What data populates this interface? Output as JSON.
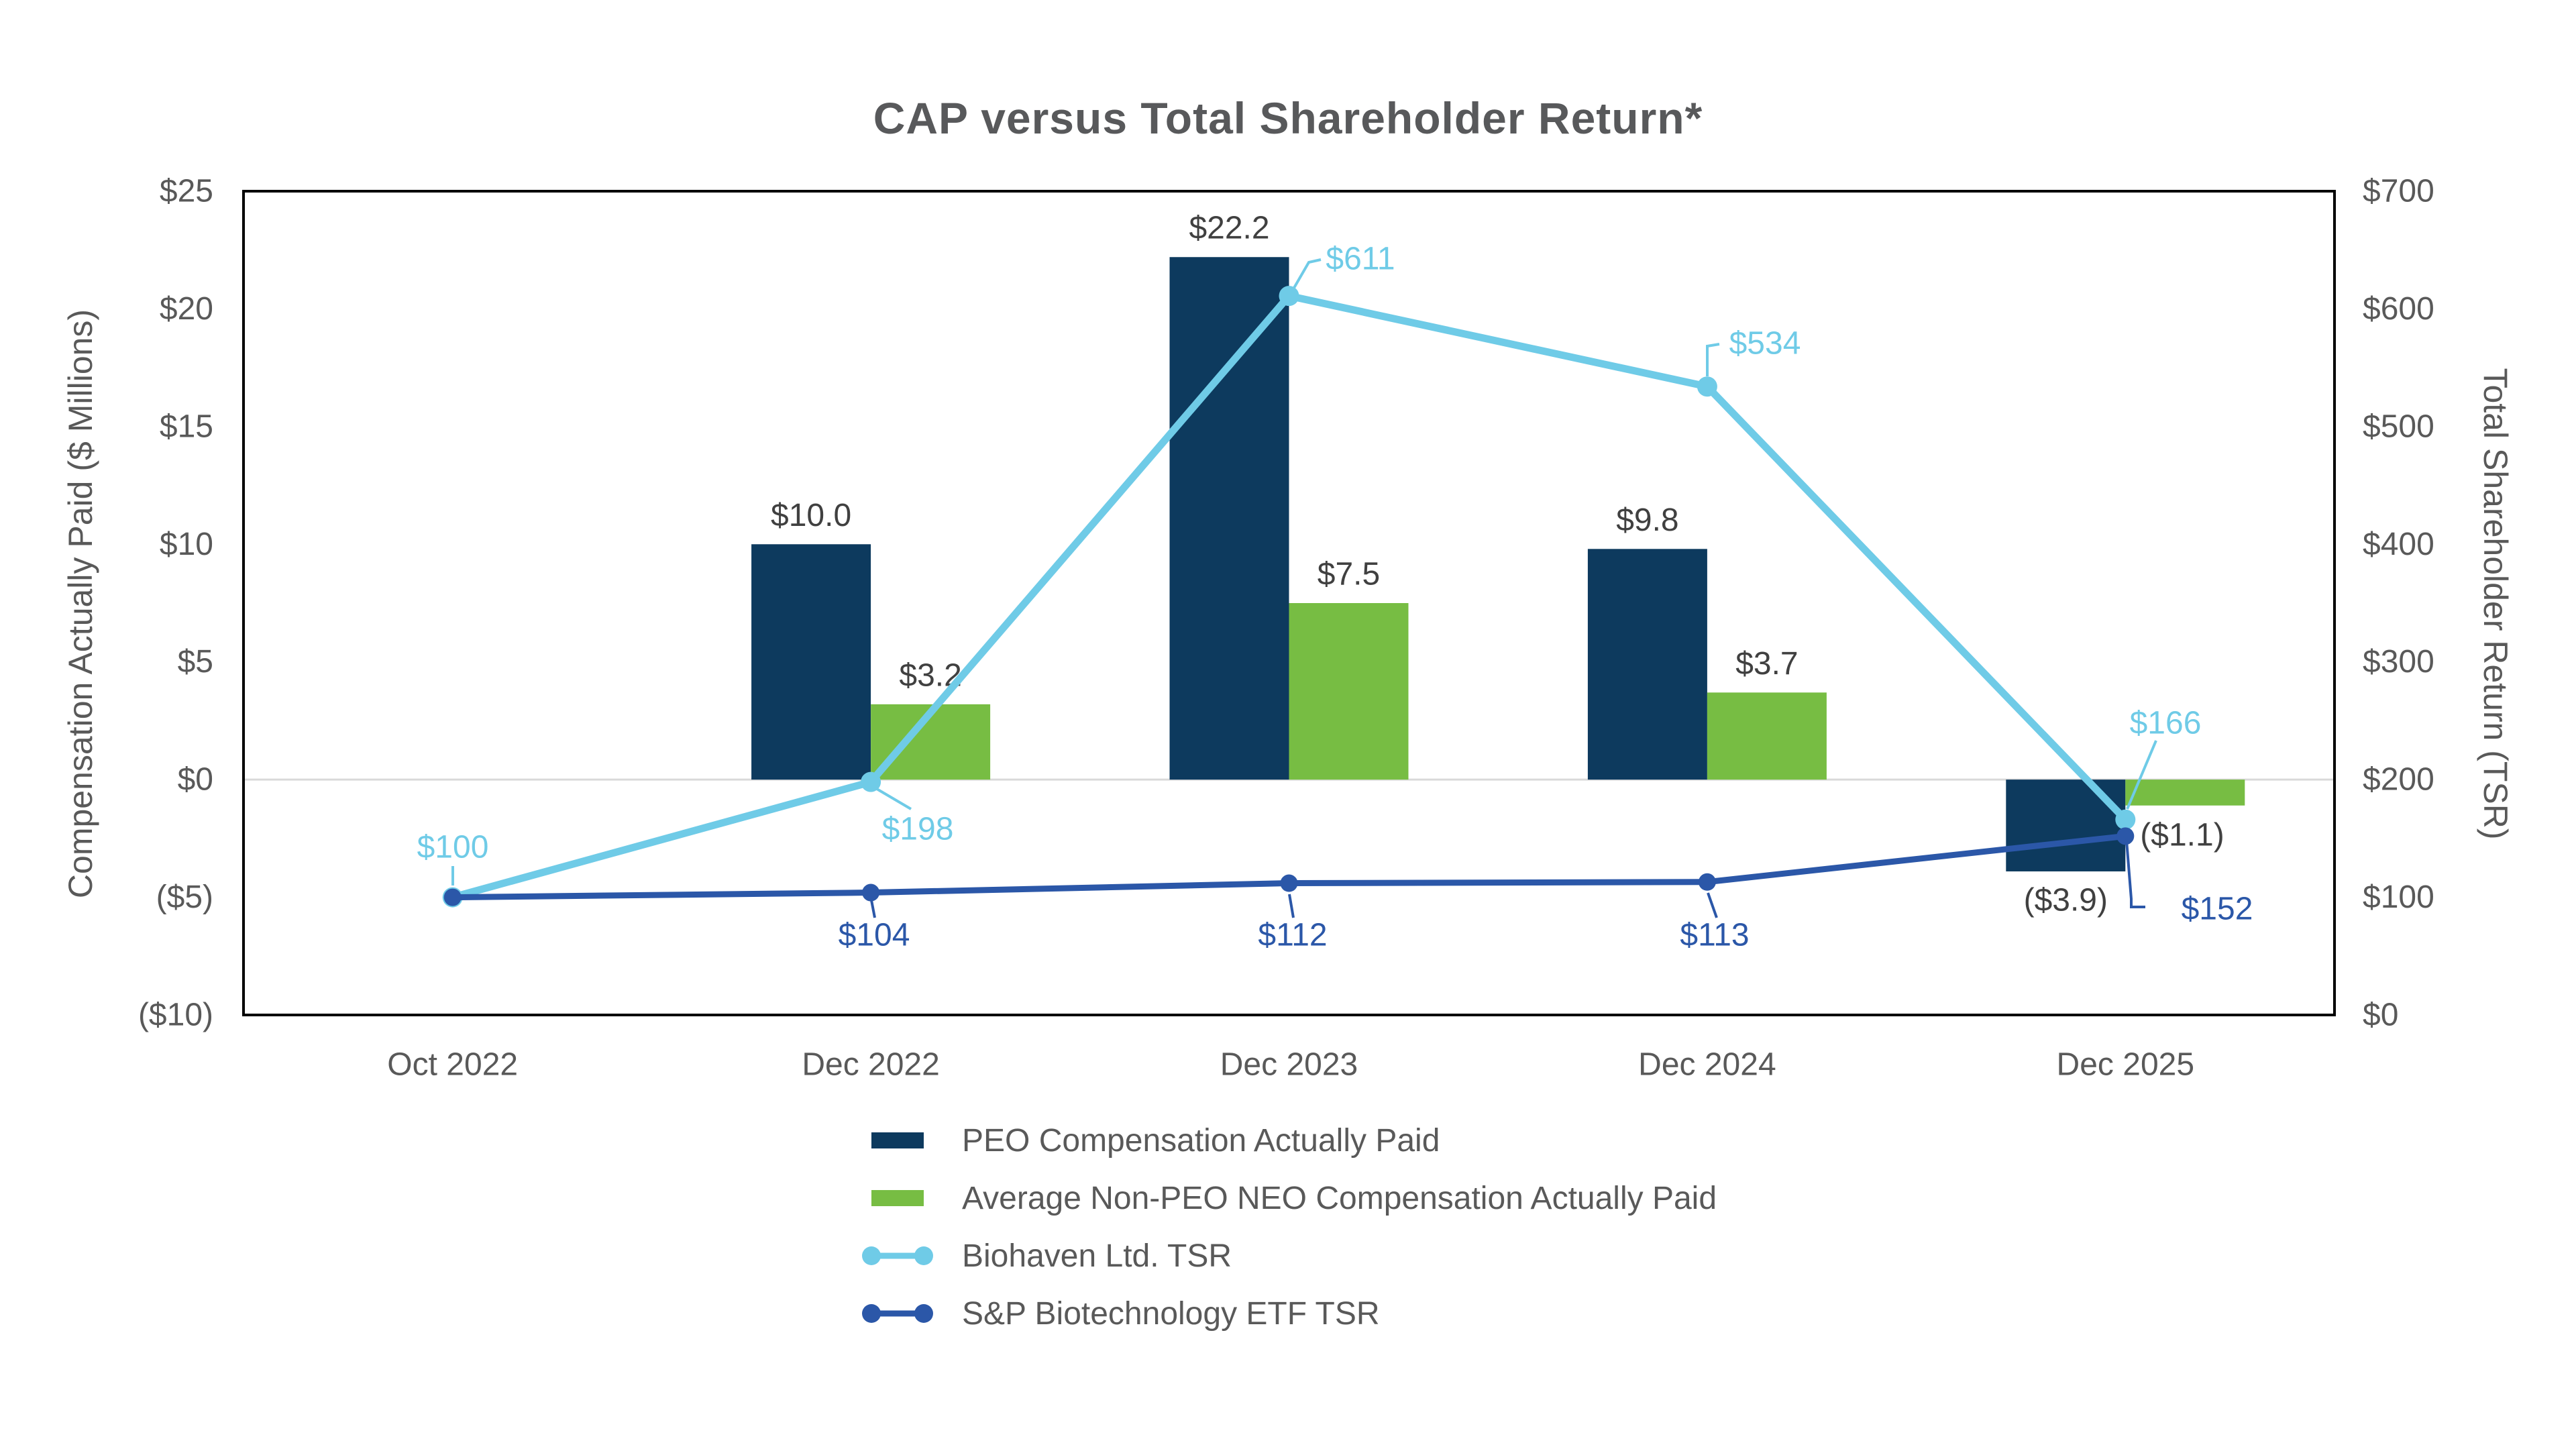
{
  "chart_data": {
    "type": "combo-bar-line",
    "title": "CAP versus Total Shareholder Return*",
    "categories": [
      "Oct 2022",
      "Dec 2022",
      "Dec 2023",
      "Dec 2024",
      "Dec 2025"
    ],
    "left_axis": {
      "label": "Compensation Actually Paid ($ Millions)",
      "ticks": [
        "$25",
        "$20",
        "$15",
        "$10",
        "$5",
        "$0",
        "($5)",
        "($10)"
      ],
      "max": 25,
      "min": -10
    },
    "right_axis": {
      "label": "Total Shareholder Return (TSR)",
      "ticks": [
        "$700",
        "$600",
        "$500",
        "$400",
        "$300",
        "$200",
        "$100",
        "$0"
      ],
      "max": 700,
      "min": 0
    },
    "grid": {
      "zero_gridline": true,
      "zero_gridline_color": "#d9d9d9",
      "plot_border_color": "#000000"
    },
    "bar_series": [
      {
        "name": "PEO Compensation Actually Paid",
        "color": "#0d3a5e",
        "axis": "left",
        "values": [
          null,
          10.0,
          22.2,
          9.8,
          -3.9
        ],
        "labels": [
          "",
          "$10.0",
          "$22.2",
          "$9.8",
          "($3.9)"
        ]
      },
      {
        "name": "Average Non-PEO NEO Compensation Actually Paid",
        "color": "#77bd43",
        "axis": "left",
        "values": [
          null,
          3.2,
          7.5,
          3.7,
          -1.1
        ],
        "labels": [
          "",
          "$3.2",
          "$7.5",
          "$3.7",
          "($1.1)"
        ]
      }
    ],
    "line_series": [
      {
        "name": "Biohaven Ltd. TSR",
        "color": "#6fcbe7",
        "axis": "right",
        "values": [
          100,
          198,
          611,
          534,
          166
        ],
        "labels": [
          "$100",
          "$198",
          "$611",
          "$534",
          "$166"
        ]
      },
      {
        "name": "S&P Biotechnology ETF TSR",
        "color": "#2b57a8",
        "axis": "right",
        "values": [
          100,
          104,
          112,
          113,
          152
        ],
        "labels": [
          "",
          "$104",
          "$112",
          "$113",
          "$152"
        ]
      }
    ],
    "legend": [
      {
        "label": "PEO Compensation Actually Paid",
        "marker": "square",
        "color": "#0d3a5e"
      },
      {
        "label": "Average Non-PEO NEO Compensation Actually Paid",
        "marker": "square",
        "color": "#77bd43"
      },
      {
        "label": "Biohaven Ltd. TSR",
        "marker": "line-dots",
        "color": "#6fcbe7"
      },
      {
        "label": "S&P Biotechnology ETF TSR",
        "marker": "line-dots",
        "color": "#2b57a8"
      }
    ],
    "legend_position": "bottom",
    "text_colors": {
      "title": "#58595b",
      "axis": "#595959",
      "bar_labels": "#404040"
    }
  }
}
